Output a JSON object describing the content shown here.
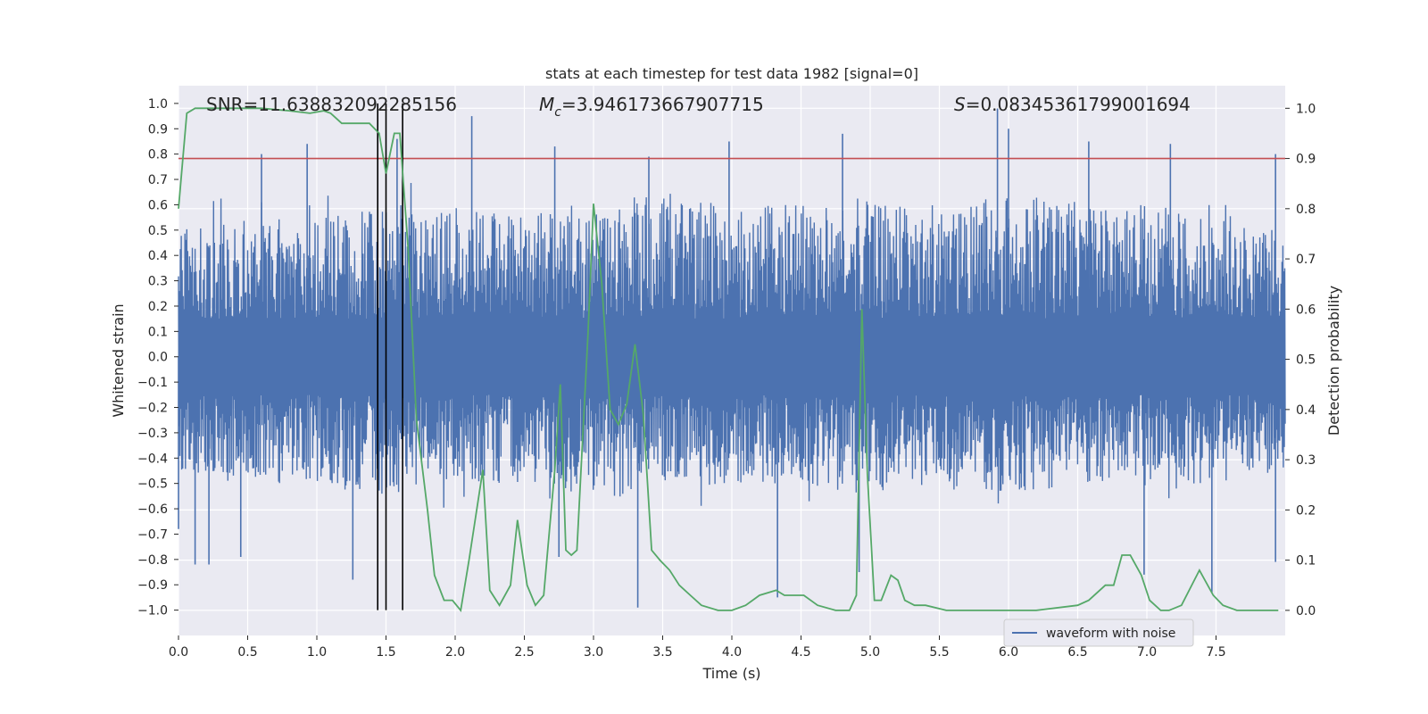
{
  "chart_data": {
    "type": "line",
    "title": "stats at each timestep for test data 1982 [signal=0]",
    "xlabel": "Time (s)",
    "ylabel_left": "Whitened strain",
    "ylabel_right": "Detection probability",
    "xlim": [
      0.0,
      8.0
    ],
    "ylim_left": [
      -1.1,
      1.07
    ],
    "ylim_right": [
      -0.05,
      1.045
    ],
    "x_ticks": [
      "0.0",
      "0.5",
      "1.0",
      "1.5",
      "2.0",
      "2.5",
      "3.0",
      "3.5",
      "4.0",
      "4.5",
      "5.0",
      "5.5",
      "6.0",
      "6.5",
      "7.0",
      "7.5"
    ],
    "y_ticks_left": [
      "1.0",
      "0.9",
      "0.8",
      "0.7",
      "0.6",
      "0.5",
      "0.4",
      "0.3",
      "0.2",
      "0.1",
      "0.0",
      "-0.1",
      "-0.2",
      "-0.3",
      "-0.4",
      "-0.5",
      "-0.6",
      "-0.7",
      "-0.8",
      "-0.9",
      "-1.0"
    ],
    "y_ticks_right": [
      "1.0",
      "0.9",
      "0.8",
      "0.7",
      "0.6",
      "0.5",
      "0.4",
      "0.3",
      "0.2",
      "0.1",
      "0.0"
    ],
    "annotations": {
      "snr": "SNR=11.638832092285156",
      "mc_prefix": "M",
      "mc_sub": "c",
      "mc_value": "=3.946173667907715",
      "s_prefix": "S",
      "s_value": "=0.08345361799001694"
    },
    "legend": [
      "waveform with noise"
    ],
    "threshold_line": {
      "axis": "right",
      "value": 0.9,
      "color": "#c44e52"
    },
    "event_markers": {
      "x": [
        1.44,
        1.5,
        1.62
      ],
      "y_range": [
        -1.0,
        1.0
      ],
      "color": "#000000"
    },
    "waveform": {
      "name": "waveform with noise",
      "color": "#4c72b0",
      "x_range": [
        0.0,
        8.0
      ],
      "envelope": {
        "x": [
          0.0,
          0.5,
          1.0,
          1.5,
          2.0,
          2.5,
          3.0,
          3.5,
          4.0,
          4.5,
          5.0,
          5.5,
          6.0,
          6.5,
          7.0,
          7.5,
          8.0
        ],
        "upper": [
          0.5,
          0.55,
          0.55,
          0.6,
          0.6,
          0.55,
          0.6,
          0.65,
          0.6,
          0.6,
          0.6,
          0.6,
          0.65,
          0.6,
          0.6,
          0.55,
          0.5
        ],
        "lower": [
          -0.45,
          -0.5,
          -0.5,
          -0.55,
          -0.5,
          -0.5,
          -0.55,
          -0.55,
          -0.5,
          -0.5,
          -0.55,
          -0.5,
          -0.55,
          -0.5,
          -0.5,
          -0.5,
          -0.45
        ]
      },
      "spikes": [
        {
          "x": 0.6,
          "y": 0.8
        },
        {
          "x": 0.93,
          "y": 0.84
        },
        {
          "x": 1.58,
          "y": 0.86
        },
        {
          "x": 2.12,
          "y": 0.95
        },
        {
          "x": 2.72,
          "y": 0.83
        },
        {
          "x": 3.4,
          "y": 0.79
        },
        {
          "x": 3.98,
          "y": 0.85
        },
        {
          "x": 4.8,
          "y": 0.88
        },
        {
          "x": 5.92,
          "y": 0.98
        },
        {
          "x": 6.0,
          "y": 0.9
        },
        {
          "x": 6.58,
          "y": 0.85
        },
        {
          "x": 7.17,
          "y": 0.84
        },
        {
          "x": 7.93,
          "y": 0.8
        },
        {
          "x": 0.0,
          "y": -0.68
        },
        {
          "x": 0.12,
          "y": -0.82
        },
        {
          "x": 0.22,
          "y": -0.82
        },
        {
          "x": 0.45,
          "y": -0.79
        },
        {
          "x": 1.26,
          "y": -0.88
        },
        {
          "x": 3.32,
          "y": -0.99
        },
        {
          "x": 4.33,
          "y": -0.95
        },
        {
          "x": 4.92,
          "y": -0.85
        },
        {
          "x": 6.98,
          "y": -0.86
        },
        {
          "x": 7.47,
          "y": -0.93
        },
        {
          "x": 2.75,
          "y": -0.79
        },
        {
          "x": 7.93,
          "y": -0.81
        }
      ]
    },
    "probability": {
      "name": "detection probability",
      "color": "#55a868",
      "x": [
        0.0,
        0.06,
        0.12,
        0.3,
        0.6,
        0.8,
        0.95,
        1.05,
        1.1,
        1.18,
        1.25,
        1.38,
        1.45,
        1.5,
        1.56,
        1.6,
        1.66,
        1.72,
        1.8,
        1.85,
        1.92,
        1.98,
        2.04,
        2.1,
        2.2,
        2.25,
        2.32,
        2.4,
        2.45,
        2.52,
        2.58,
        2.64,
        2.72,
        2.76,
        2.8,
        2.84,
        2.88,
        2.96,
        3.0,
        3.06,
        3.12,
        3.18,
        3.24,
        3.3,
        3.36,
        3.42,
        3.48,
        3.55,
        3.62,
        3.7,
        3.78,
        3.9,
        4.0,
        4.1,
        4.2,
        4.32,
        4.38,
        4.45,
        4.52,
        4.62,
        4.75,
        4.85,
        4.9,
        4.94,
        4.98,
        5.03,
        5.08,
        5.15,
        5.2,
        5.25,
        5.32,
        5.4,
        5.55,
        5.7,
        5.9,
        6.2,
        6.5,
        6.58,
        6.7,
        6.76,
        6.82,
        6.88,
        6.96,
        7.02,
        7.1,
        7.16,
        7.25,
        7.38,
        7.48,
        7.55,
        7.65,
        7.8,
        7.95
      ],
      "y": [
        0.8,
        0.99,
        1.0,
        1.0,
        1.0,
        0.995,
        0.99,
        0.995,
        0.99,
        0.97,
        0.97,
        0.97,
        0.95,
        0.87,
        0.95,
        0.95,
        0.72,
        0.38,
        0.2,
        0.07,
        0.02,
        0.02,
        0.0,
        0.1,
        0.28,
        0.04,
        0.01,
        0.05,
        0.18,
        0.05,
        0.01,
        0.03,
        0.28,
        0.45,
        0.12,
        0.11,
        0.12,
        0.55,
        0.81,
        0.65,
        0.4,
        0.37,
        0.41,
        0.53,
        0.39,
        0.12,
        0.1,
        0.08,
        0.05,
        0.03,
        0.01,
        0.0,
        0.0,
        0.01,
        0.03,
        0.04,
        0.03,
        0.03,
        0.03,
        0.01,
        0.0,
        0.0,
        0.03,
        0.6,
        0.27,
        0.02,
        0.02,
        0.07,
        0.06,
        0.02,
        0.01,
        0.01,
        0.0,
        0.0,
        0.0,
        0.0,
        0.01,
        0.02,
        0.05,
        0.05,
        0.11,
        0.11,
        0.07,
        0.02,
        0.0,
        0.0,
        0.01,
        0.08,
        0.03,
        0.01,
        0.0,
        0.0,
        0.0
      ]
    }
  }
}
